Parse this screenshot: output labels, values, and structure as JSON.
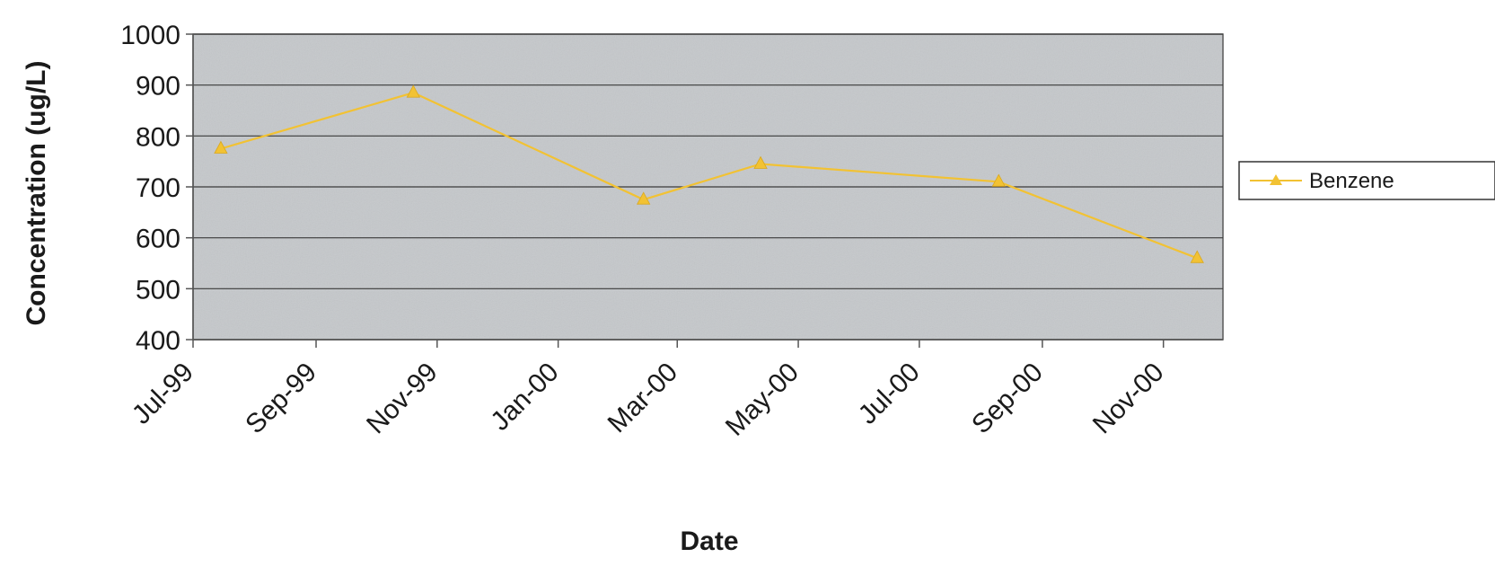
{
  "colors": {
    "plot_background": "#c5c8cb",
    "gridline": "#3a3a3a",
    "axis": "#555555",
    "series": "#f2c233"
  },
  "chart_data": {
    "type": "line",
    "xlabel": "Date",
    "ylabel": "Concentration (ug/L)",
    "ylim": [
      400,
      1000
    ],
    "y_ticks": [
      "1000",
      "900",
      "800",
      "700",
      "600",
      "500",
      "400"
    ],
    "x_range": [
      "1999-07-01",
      "2000-12-01"
    ],
    "x_ticks": [
      "Jul-99",
      "Sep-99",
      "Nov-99",
      "Jan-00",
      "Mar-00",
      "May-00",
      "Jul-00",
      "Sep-00",
      "Nov-00"
    ],
    "grid": true,
    "legend_position": "right",
    "series": [
      {
        "name": "Benzene",
        "marker": "triangle",
        "points": [
          {
            "x": "1999-07-15",
            "y": 775
          },
          {
            "x": "1999-10-20",
            "y": 885
          },
          {
            "x": "2000-02-13",
            "y": 675
          },
          {
            "x": "2000-04-12",
            "y": 745
          },
          {
            "x": "2000-08-10",
            "y": 710
          },
          {
            "x": "2000-11-18",
            "y": 560
          }
        ]
      }
    ]
  }
}
